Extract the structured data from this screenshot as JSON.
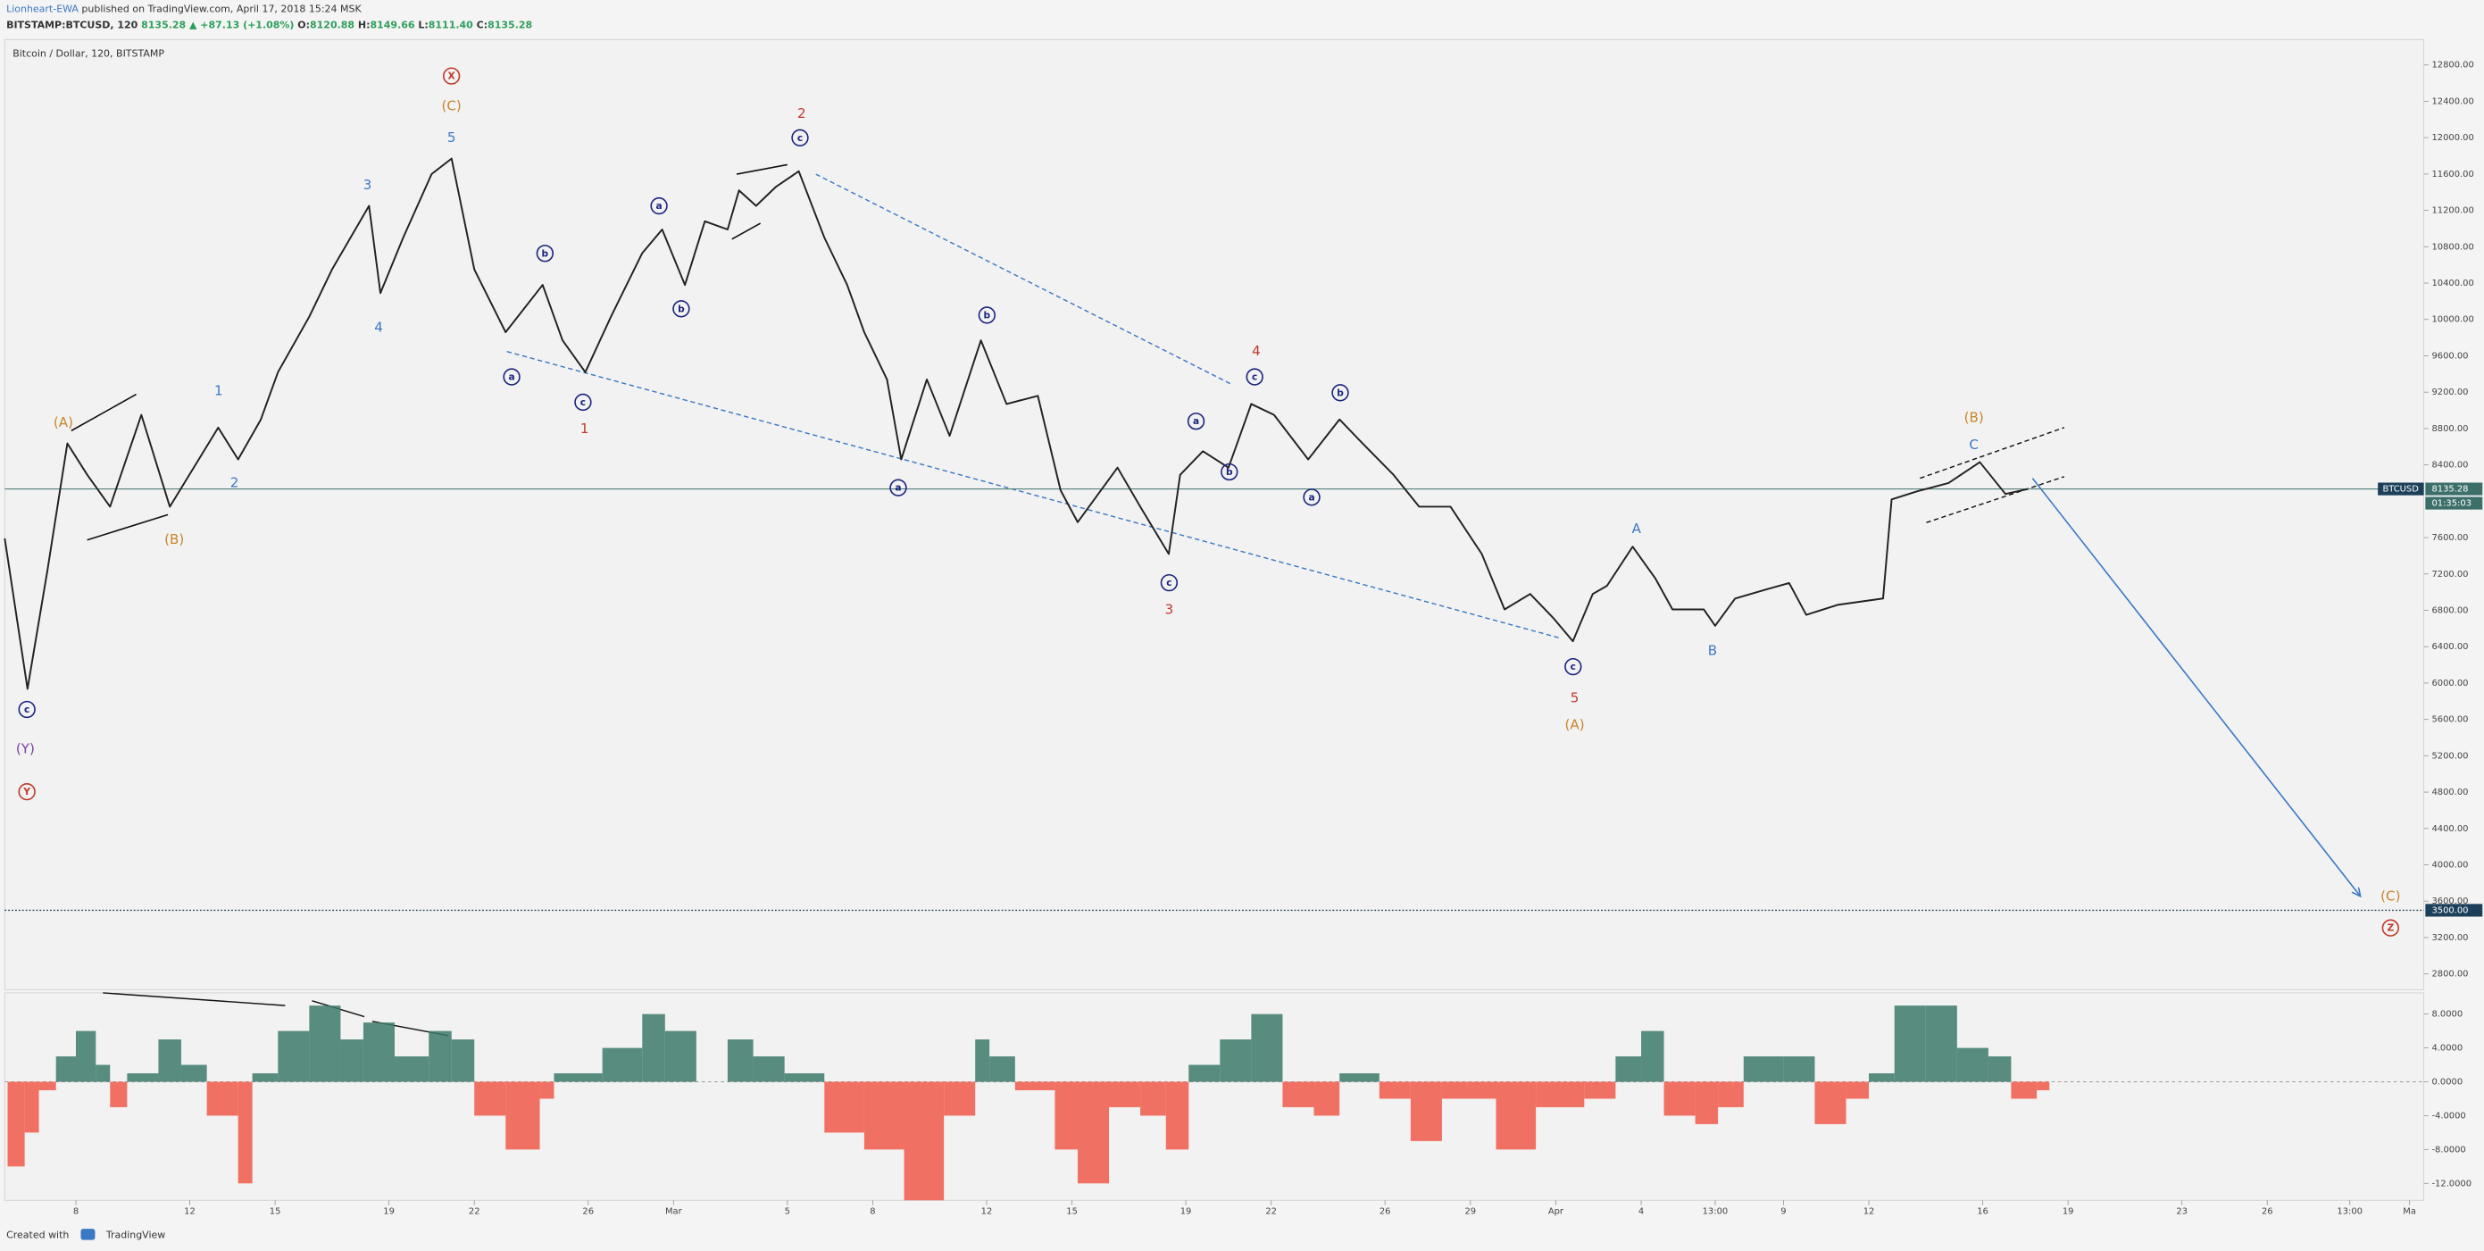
{
  "header": {
    "author": "Lionheart-EWA",
    "published": "published on TradingView.com, April 17, 2018 15:24 MSK",
    "symbol": "BITSTAMP:BTCUSD, 120",
    "change": "8135.28 ▲ +87.13 (+1.08%)",
    "ohlc": [
      {
        "key": "O:",
        "value": "8120.88"
      },
      {
        "key": "H:",
        "value": "8149.66"
      },
      {
        "key": "L:",
        "value": "8111.40"
      },
      {
        "key": "C:",
        "value": "8135.28"
      }
    ]
  },
  "footer": {
    "created": "Created with",
    "brand": "TradingView"
  },
  "chart_data": [
    {
      "type": "line",
      "title": "Bitcoin / Dollar, 120, BITSTAMP",
      "series": [
        {
          "name": "BTCUSD",
          "color": "#222222",
          "x": [
            36.5,
            37.3,
            38.0,
            38.7,
            39.4,
            40.2,
            41.3,
            42.3,
            44.0,
            44.7,
            45.5,
            46.1,
            47.2,
            48.0,
            49.3,
            49.7,
            50.5,
            51.5,
            52.2,
            53.0,
            54.1,
            55.4,
            56.1,
            56.9,
            57.8,
            58.9,
            59.6,
            60.4,
            61.1,
            61.9,
            62.3,
            62.9,
            63.6,
            64.4,
            65.3,
            66.1,
            66.7,
            67.5,
            68.0,
            68.9,
            69.7,
            70.8,
            71.7,
            72.8,
            73.6,
            74.2,
            75.6,
            76.4,
            77.4,
            77.8,
            78.6,
            79.5,
            80.3,
            81.1,
            82.3,
            83.4,
            84.2,
            85.3,
            86.2,
            87.3,
            88.4,
            89.2,
            90.1,
            90.9,
            91.6,
            92.3,
            92.8,
            93.7,
            94.5,
            95.1,
            96.2,
            96.6,
            97.3,
            98.4,
            99.2,
            99.8,
            100.9,
            102.5,
            102.8,
            103.7,
            104.8,
            105.9,
            106.8,
            107.6
          ],
          "values": [
            7591,
            5936,
            7240,
            8636,
            8290,
            7940,
            8950,
            7940,
            8810,
            8460,
            8900,
            9420,
            10030,
            10550,
            11250,
            10290,
            10900,
            11600,
            11770,
            10550,
            9860,
            10380,
            9770,
            9420,
            10030,
            10730,
            10990,
            10380,
            11080,
            10990,
            11420,
            11250,
            11460,
            11630,
            10900,
            10380,
            9860,
            9340,
            8460,
            9340,
            8720,
            9770,
            9070,
            9160,
            8120,
            7770,
            8370,
            7940,
            7420,
            8290,
            8550,
            8370,
            9070,
            8950,
            8460,
            8900,
            8640,
            8290,
            7940,
            7940,
            7420,
            6810,
            6980,
            6720,
            6460,
            6980,
            7070,
            7500,
            7150,
            6810,
            6810,
            6630,
            6930,
            7030,
            7100,
            6750,
            6860,
            6930,
            8020,
            8110,
            8200,
            8430,
            8080,
            8135.28
          ]
        }
      ],
      "xlim": [
        36.5,
        121.5
      ],
      "xticks": [
        {
          "value": 39,
          "label": "8"
        },
        {
          "value": 43,
          "label": "12"
        },
        {
          "value": 46,
          "label": "15"
        },
        {
          "value": 50,
          "label": "19"
        },
        {
          "value": 53,
          "label": "22"
        },
        {
          "value": 57,
          "label": "26"
        },
        {
          "value": 60,
          "label": "Mar"
        },
        {
          "value": 64,
          "label": "5"
        },
        {
          "value": 67,
          "label": "8"
        },
        {
          "value": 71,
          "label": "12"
        },
        {
          "value": 74,
          "label": "15"
        },
        {
          "value": 78,
          "label": "19"
        },
        {
          "value": 81,
          "label": "22"
        },
        {
          "value": 85,
          "label": "26"
        },
        {
          "value": 88,
          "label": "29"
        },
        {
          "value": 91,
          "label": "Apr"
        },
        {
          "value": 94,
          "label": "4"
        },
        {
          "value": 96.6,
          "label": "13:00"
        },
        {
          "value": 99,
          "label": "9"
        },
        {
          "value": 102,
          "label": "12"
        },
        {
          "value": 106,
          "label": "16"
        },
        {
          "value": 109,
          "label": "19"
        },
        {
          "value": 113,
          "label": "23"
        },
        {
          "value": 116,
          "label": "26"
        },
        {
          "value": 118.9,
          "label": "13:00"
        },
        {
          "value": 121,
          "label": "Ma"
        }
      ],
      "ylim": [
        2626,
        13079
      ],
      "yticks": [
        {
          "value": 12800,
          "label": "12800.00"
        },
        {
          "value": 12400,
          "label": "12400.00"
        },
        {
          "value": 12000,
          "label": "12000.00"
        },
        {
          "value": 11600,
          "label": "11600.00"
        },
        {
          "value": 11200,
          "label": "11200.00"
        },
        {
          "value": 10800,
          "label": "10800.00"
        },
        {
          "value": 10400,
          "label": "10400.00"
        },
        {
          "value": 10000,
          "label": "10000.00"
        },
        {
          "value": 9600,
          "label": "9600.00"
        },
        {
          "value": 9200,
          "label": "9200.00"
        },
        {
          "value": 8800,
          "label": "8800.00"
        },
        {
          "value": 8400,
          "label": "8400.00"
        },
        {
          "value": 7600,
          "label": "7600.00"
        },
        {
          "value": 7200,
          "label": "7200.00"
        },
        {
          "value": 6800,
          "label": "6800.00"
        },
        {
          "value": 6400,
          "label": "6400.00"
        },
        {
          "value": 6000,
          "label": "6000.00"
        },
        {
          "value": 5600,
          "label": "5600.00"
        },
        {
          "value": 5200,
          "label": "5200.00"
        },
        {
          "value": 4800,
          "label": "4800.00"
        },
        {
          "value": 4400,
          "label": "4400.00"
        },
        {
          "value": 4000,
          "label": "4000.00"
        },
        {
          "value": 3600,
          "label": "3600.00"
        },
        {
          "value": 3200,
          "label": "3200.00"
        },
        {
          "value": 2800,
          "label": "2800.00"
        }
      ],
      "last_price": 8135.28,
      "countdown": "01:35:03",
      "levels": [
        {
          "value": 3500,
          "label": "3500.00"
        }
      ],
      "annotations": [
        {
          "text": "X",
          "color": "#c0392b",
          "circled": true
        },
        {
          "text": "(C)",
          "color": "#c8852a",
          "circled": false
        },
        {
          "text": "5",
          "color": "#3b78c4",
          "circled": false
        },
        {
          "text": "3",
          "color": "#3b78c4",
          "circled": false
        },
        {
          "text": "4",
          "color": "#3b78c4",
          "circled": false
        },
        {
          "text": "(A)",
          "color": "#c8852a",
          "circled": false
        },
        {
          "text": "1",
          "color": "#3b78c4",
          "circled": false
        },
        {
          "text": "2",
          "color": "#3b78c4",
          "circled": false
        },
        {
          "text": "(B)",
          "color": "#c8852a",
          "circled": false
        },
        {
          "text": "c",
          "color": "#1a237e",
          "circled": true
        },
        {
          "text": "(Y)",
          "color": "#7b3fa0",
          "circled": false
        },
        {
          "text": "Y",
          "color": "#c0392b",
          "circled": true
        },
        {
          "text": "a",
          "color": "#1a237e",
          "circled": true
        },
        {
          "text": "b",
          "color": "#1a237e",
          "circled": true
        },
        {
          "text": "c",
          "color": "#1a237e",
          "circled": true
        },
        {
          "text": "1",
          "color": "#c0392b",
          "circled": false
        },
        {
          "text": "a",
          "color": "#1a237e",
          "circled": true
        },
        {
          "text": "b",
          "color": "#1a237e",
          "circled": true
        },
        {
          "text": "2",
          "color": "#c0392b",
          "circled": false
        },
        {
          "text": "c",
          "color": "#1a237e",
          "circled": true
        },
        {
          "text": "b",
          "color": "#1a237e",
          "circled": true
        },
        {
          "text": "a",
          "color": "#1a237e",
          "circled": true
        },
        {
          "text": "4",
          "color": "#c0392b",
          "circled": false
        },
        {
          "text": "c",
          "color": "#1a237e",
          "circled": true
        },
        {
          "text": "b",
          "color": "#1a237e",
          "circled": true
        },
        {
          "text": "a",
          "color": "#1a237e",
          "circled": true
        },
        {
          "text": "b",
          "color": "#1a237e",
          "circled": true
        },
        {
          "text": "a",
          "color": "#1a237e",
          "circled": true
        },
        {
          "text": "c",
          "color": "#1a237e",
          "circled": true
        },
        {
          "text": "3",
          "color": "#c0392b",
          "circled": false
        },
        {
          "text": "c",
          "color": "#1a237e",
          "circled": true
        },
        {
          "text": "5",
          "color": "#c0392b",
          "circled": false
        },
        {
          "text": "(A)",
          "color": "#c8852a",
          "circled": false
        },
        {
          "text": "A",
          "color": "#3b78c4",
          "circled": false
        },
        {
          "text": "B",
          "color": "#3b78c4",
          "circled": false
        },
        {
          "text": "(B)",
          "color": "#c8852a",
          "circled": false
        },
        {
          "text": "C",
          "color": "#3b78c4",
          "circled": false
        },
        {
          "text": "(C)",
          "color": "#c8852a",
          "circled": false
        },
        {
          "text": "Z",
          "color": "#c0392b",
          "circled": true
        }
      ]
    },
    {
      "type": "bar",
      "positive_color": "#3d7a6b",
      "negative_color": "#f05a4a",
      "x": [
        36.6,
        37.2,
        37.7,
        38.3,
        39.0,
        39.7,
        40.2,
        40.8,
        41.9,
        42.7,
        43.6,
        44.7,
        45.2,
        46.1,
        47.2,
        48.3,
        49.1,
        50.2,
        51.4,
        52.2,
        53.0,
        54.1,
        55.3,
        55.8,
        57.5,
        58.9,
        59.7,
        60.8,
        61.9,
        62.8,
        63.9,
        65.3,
        66.7,
        68.1,
        69.5,
        70.6,
        71.1,
        72.0,
        73.4,
        74.2,
        75.3,
        76.4,
        77.3,
        78.1,
        79.2,
        80.3,
        81.4,
        82.5,
        83.4,
        84.8,
        85.9,
        87.0,
        88.9,
        90.3,
        92.0,
        93.1,
        94.0,
        94.8,
        95.9,
        96.7,
        97.6,
        99.0,
        100.1,
        101.2,
        102.0,
        102.9,
        104.0,
        105.1,
        106.2,
        107.0,
        107.9
      ],
      "values": [
        -10,
        -6,
        -1,
        3,
        6,
        2,
        -3,
        1,
        5,
        2,
        -4,
        -12,
        1,
        6,
        9,
        5,
        7,
        3,
        6,
        5,
        -4,
        -8,
        -2,
        1,
        4,
        8,
        6,
        0,
        5,
        3,
        1,
        -6,
        -8,
        -14,
        -4,
        5,
        3,
        -1,
        -8,
        -12,
        -3,
        -4,
        -8,
        2,
        5,
        8,
        -3,
        -4,
        1,
        -2,
        -7,
        -2,
        -8,
        -3,
        -2,
        3,
        6,
        -4,
        -5,
        -3,
        3,
        3,
        -5,
        -2,
        1,
        9,
        9,
        4,
        3,
        -2,
        -1
      ],
      "xlim": [
        36.5,
        121.5
      ],
      "ylim": [
        -14,
        10.5
      ],
      "yticks": [
        {
          "value": 8,
          "label": "8.0000"
        },
        {
          "value": 4,
          "label": "4.0000"
        },
        {
          "value": 0,
          "label": "0.0000"
        },
        {
          "value": -4,
          "label": "-4.0000"
        },
        {
          "value": -8,
          "label": "-8.0000"
        },
        {
          "value": -12,
          "label": "-12.0000"
        }
      ]
    }
  ]
}
